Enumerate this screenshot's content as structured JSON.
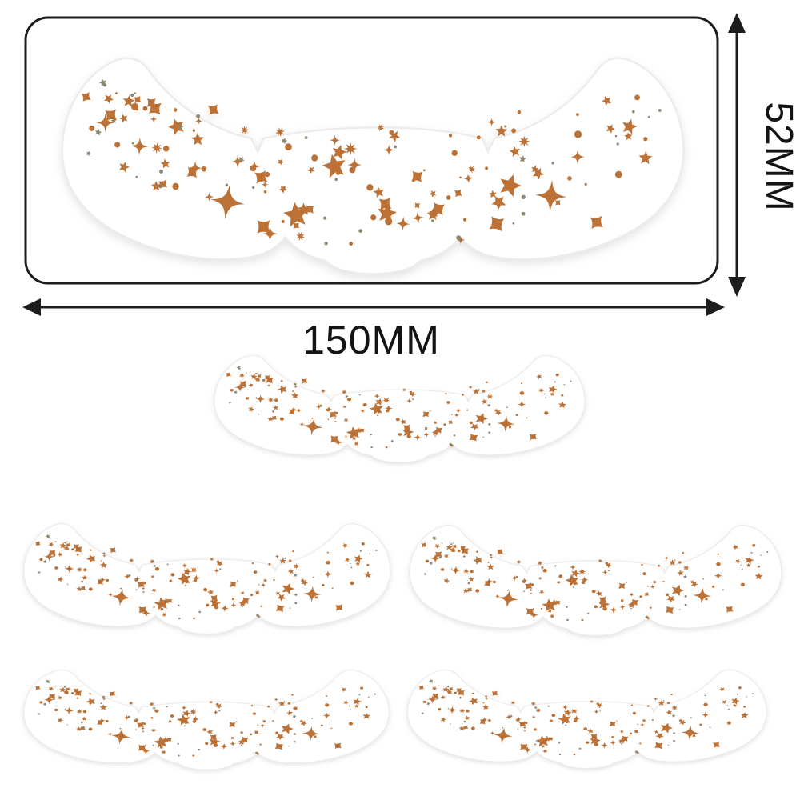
{
  "diagram": {
    "width_label": "150MM",
    "height_label": "52MM"
  },
  "colors": {
    "background": "#ffffff",
    "line": "#1d1d1d",
    "patch_fill": "#ffffff",
    "patch_edge": "#ececec",
    "star_copper": "#bc7136",
    "star_olive": "#8b8970"
  },
  "pattern": {
    "seed": 11,
    "star_count": 150
  }
}
